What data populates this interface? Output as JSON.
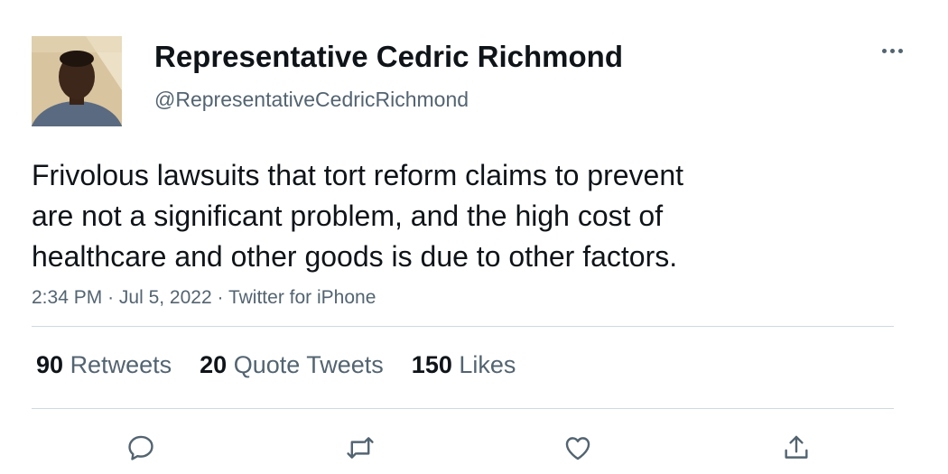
{
  "author": {
    "display_name": "Representative Cedric Richmond",
    "handle": "@RepresentativeCedricRichmond"
  },
  "tweet": {
    "text_lines": [
      "Frivolous lawsuits that tort reform claims to prevent",
      "are not a significant problem, and the high cost of",
      "healthcare and other goods is due to other factors."
    ],
    "time": "2:34 PM",
    "date": "Jul 5, 2022",
    "source": "Twitter for iPhone",
    "separator": "·"
  },
  "stats": {
    "retweets": {
      "count": "90",
      "label": "Retweets"
    },
    "quote_tweets": {
      "count": "20",
      "label": "Quote Tweets"
    },
    "likes": {
      "count": "150",
      "label": "Likes"
    }
  },
  "icons": {
    "more": "more-icon",
    "reply": "reply-icon",
    "retweet": "retweet-icon",
    "like": "heart-icon",
    "share": "share-icon"
  },
  "colors": {
    "text": "#0f1419",
    "secondary": "#536471",
    "divider": "#cfd9de",
    "background": "#ffffff"
  }
}
